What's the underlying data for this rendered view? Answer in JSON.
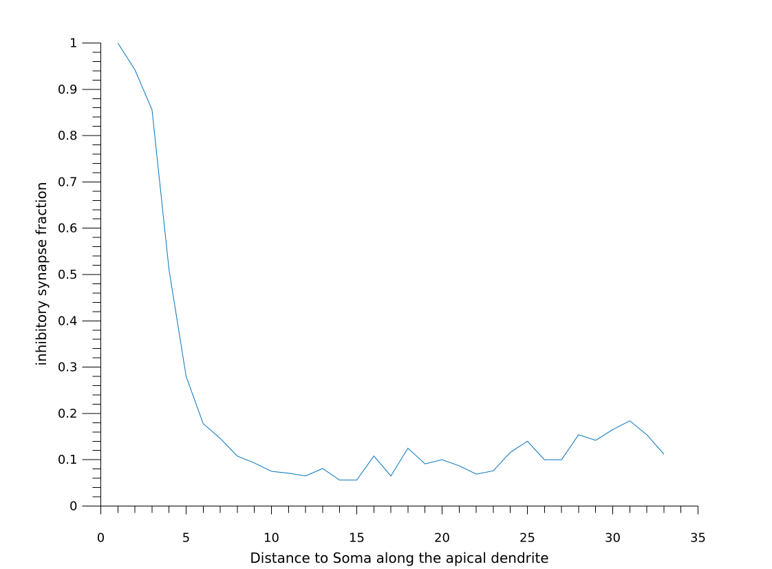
{
  "chart_data": {
    "type": "line",
    "title": "",
    "xlabel": "Distance to Soma along the apical dendrite",
    "ylabel": "inhibitory synapse fraction",
    "xlim": [
      0,
      35
    ],
    "ylim": [
      0,
      1
    ],
    "xticks": [
      0,
      5,
      10,
      15,
      20,
      25,
      30,
      35
    ],
    "xtick_labels": [
      "0",
      "5",
      "10",
      "15",
      "20",
      "25",
      "30",
      "35"
    ],
    "xminor_step": 1,
    "yticks": [
      0,
      0.1,
      0.2,
      0.3,
      0.4,
      0.5,
      0.6,
      0.7,
      0.8,
      0.9,
      1
    ],
    "ytick_labels": [
      "0",
      "0.1",
      "0.2",
      "0.3",
      "0.4",
      "0.5",
      "0.6",
      "0.7",
      "0.8",
      "0.9",
      "1"
    ],
    "yminor_step": 0.02,
    "grid": false,
    "legend": "none",
    "series": [
      {
        "color": "#0072BD",
        "x": [
          1,
          2,
          3,
          4,
          5,
          6,
          7,
          8,
          9,
          10,
          11,
          12,
          13,
          14,
          15,
          16,
          17,
          18,
          19,
          20,
          21,
          22,
          23,
          24,
          25,
          26,
          27,
          28,
          29,
          30,
          31,
          32,
          33
        ],
        "values": [
          1.0,
          0.942,
          0.856,
          0.51,
          0.28,
          0.178,
          0.146,
          0.108,
          0.093,
          0.075,
          0.071,
          0.065,
          0.081,
          0.056,
          0.056,
          0.108,
          0.065,
          0.125,
          0.091,
          0.1,
          0.087,
          0.069,
          0.076,
          0.116,
          0.14,
          0.1,
          0.1,
          0.154,
          0.142,
          0.165,
          0.184,
          0.154,
          0.112
        ]
      }
    ]
  }
}
